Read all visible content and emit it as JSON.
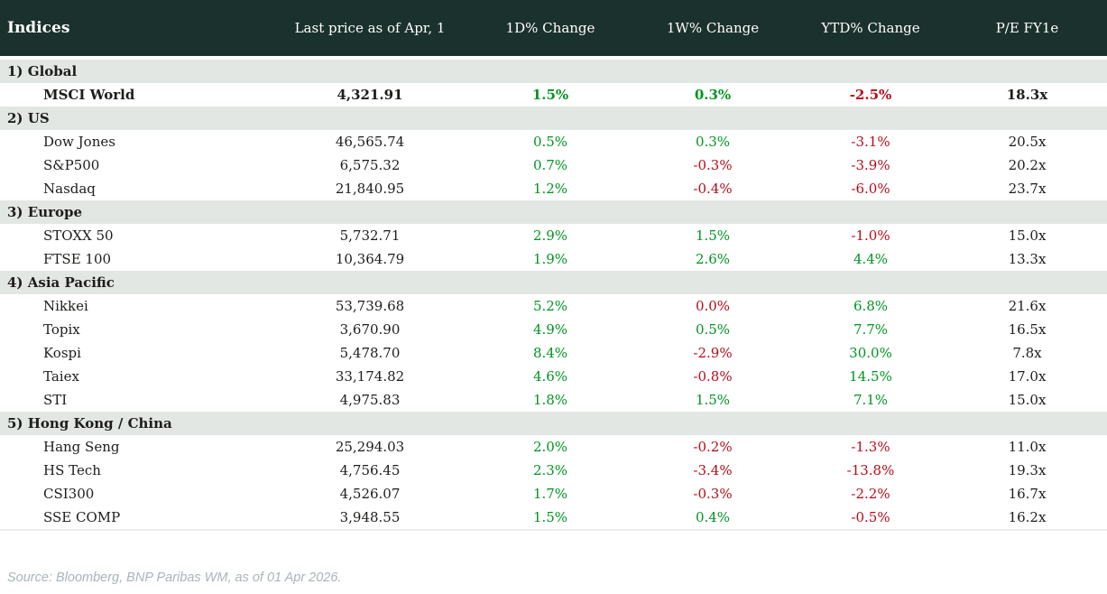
{
  "header": {
    "title": "Indices",
    "columns": [
      "Last price as of Apr, 1",
      "1D% Change",
      "1W% Change",
      "YTD% Change",
      "P/E FY1e"
    ]
  },
  "sections": [
    {
      "label": "1) Global",
      "rows": [
        {
          "name": "MSCI World",
          "bold": true,
          "values": [
            "4,321.91",
            "1.5%",
            "0.3%",
            "-2.5%",
            "18.3x"
          ],
          "value_colors": [
            "black",
            "green",
            "green",
            "red",
            "black"
          ]
        }
      ]
    },
    {
      "label": "2) US",
      "rows": [
        {
          "name": "Dow Jones",
          "bold": false,
          "values": [
            "46,565.74",
            "0.5%",
            "0.3%",
            "-3.1%",
            "20.5x"
          ],
          "value_colors": [
            "black",
            "green",
            "green",
            "red",
            "black"
          ]
        },
        {
          "name": "S&P500",
          "bold": false,
          "values": [
            "6,575.32",
            "0.7%",
            "-0.3%",
            "-3.9%",
            "20.2x"
          ],
          "value_colors": [
            "black",
            "green",
            "red",
            "red",
            "black"
          ]
        },
        {
          "name": "Nasdaq",
          "bold": false,
          "values": [
            "21,840.95",
            "1.2%",
            "-0.4%",
            "-6.0%",
            "23.7x"
          ],
          "value_colors": [
            "black",
            "green",
            "red",
            "red",
            "black"
          ]
        }
      ]
    },
    {
      "label": "3) Europe",
      "rows": [
        {
          "name": "STOXX 50",
          "bold": false,
          "values": [
            "5,732.71",
            "2.9%",
            "1.5%",
            "-1.0%",
            "15.0x"
          ],
          "value_colors": [
            "black",
            "green",
            "green",
            "red",
            "black"
          ]
        },
        {
          "name": "FTSE 100",
          "bold": false,
          "values": [
            "10,364.79",
            "1.9%",
            "2.6%",
            "4.4%",
            "13.3x"
          ],
          "value_colors": [
            "black",
            "green",
            "green",
            "green",
            "black"
          ]
        }
      ]
    },
    {
      "label": "4) Asia Pacific",
      "rows": [
        {
          "name": "Nikkei",
          "bold": false,
          "values": [
            "53,739.68",
            "5.2%",
            "0.0%",
            "6.8%",
            "21.6x"
          ],
          "value_colors": [
            "black",
            "green",
            "red",
            "green",
            "black"
          ]
        },
        {
          "name": "Topix",
          "bold": false,
          "values": [
            "3,670.90",
            "4.9%",
            "0.5%",
            "7.7%",
            "16.5x"
          ],
          "value_colors": [
            "black",
            "green",
            "green",
            "green",
            "black"
          ]
        },
        {
          "name": "Kospi",
          "bold": false,
          "values": [
            "5,478.70",
            "8.4%",
            "-2.9%",
            "30.0%",
            "7.8x"
          ],
          "value_colors": [
            "black",
            "green",
            "red",
            "green",
            "black"
          ]
        },
        {
          "name": "Taiex",
          "bold": false,
          "values": [
            "33,174.82",
            "4.6%",
            "-0.8%",
            "14.5%",
            "17.0x"
          ],
          "value_colors": [
            "black",
            "green",
            "red",
            "green",
            "black"
          ]
        },
        {
          "name": "STI",
          "bold": false,
          "values": [
            "4,975.83",
            "1.8%",
            "1.5%",
            "7.1%",
            "15.0x"
          ],
          "value_colors": [
            "black",
            "green",
            "green",
            "green",
            "black"
          ]
        }
      ]
    },
    {
      "label": "5) Hong Kong / China",
      "rows": [
        {
          "name": "Hang Seng",
          "bold": false,
          "values": [
            "25,294.03",
            "2.0%",
            "-0.2%",
            "-1.3%",
            "11.0x"
          ],
          "value_colors": [
            "black",
            "green",
            "red",
            "red",
            "black"
          ]
        },
        {
          "name": "HS Tech",
          "bold": false,
          "values": [
            "4,756.45",
            "2.3%",
            "-3.4%",
            "-13.8%",
            "19.3x"
          ],
          "value_colors": [
            "black",
            "green",
            "red",
            "red",
            "black"
          ]
        },
        {
          "name": "CSI300",
          "bold": false,
          "values": [
            "4,526.07",
            "1.7%",
            "-0.3%",
            "-2.2%",
            "16.7x"
          ],
          "value_colors": [
            "black",
            "green",
            "red",
            "red",
            "black"
          ]
        },
        {
          "name": "SSE COMP",
          "bold": false,
          "values": [
            "3,948.55",
            "1.5%",
            "0.4%",
            "-0.5%",
            "16.2x"
          ],
          "value_colors": [
            "black",
            "green",
            "green",
            "red",
            "black"
          ]
        }
      ]
    }
  ],
  "footer": {
    "source": "Source: Bloomberg, BNP Paribas WM, as of 01 Apr 2026."
  },
  "colors": {
    "header_bg": "#1b312d",
    "section_bg": "#e3e7e3",
    "positive": "#009421",
    "negative": "#b80b1a",
    "text": "#1d1d1b",
    "source_text": "#aab4b9"
  }
}
